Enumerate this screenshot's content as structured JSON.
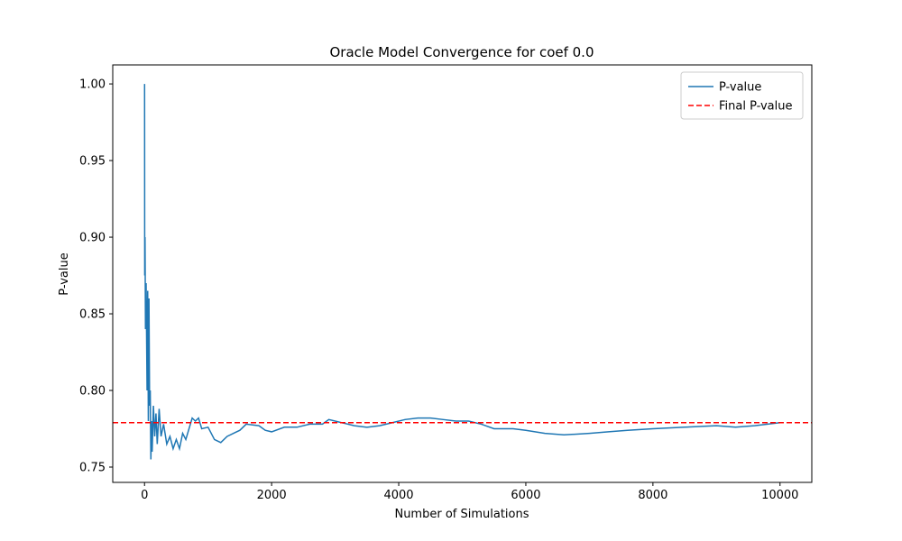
{
  "chart_data": {
    "type": "line",
    "title": "Oracle Model Convergence for coef 0.0",
    "xlabel": "Number of Simulations",
    "ylabel": "P-value",
    "x": [
      1,
      3,
      8,
      15,
      25,
      40,
      50,
      60,
      70,
      80,
      90,
      100,
      110,
      120,
      140,
      160,
      180,
      200,
      230,
      260,
      300,
      350,
      400,
      450,
      500,
      550,
      600,
      650,
      700,
      750,
      800,
      850,
      900,
      1000,
      1100,
      1200,
      1300,
      1400,
      1500,
      1600,
      1800,
      1900,
      2000,
      2200,
      2400,
      2600,
      2800,
      2900,
      3100,
      3300,
      3500,
      3700,
      3900,
      4100,
      4300,
      4500,
      4700,
      4900,
      5100,
      5300,
      5500,
      5800,
      6000,
      6300,
      6600,
      7000,
      7300,
      7600,
      8000,
      8500,
      9000,
      9300,
      9600,
      10000
    ],
    "series": [
      {
        "name": "P-value",
        "color": "#1f77b4",
        "values": [
          1.0,
          0.875,
          0.9,
          0.84,
          0.87,
          0.8,
          0.865,
          0.78,
          0.86,
          0.79,
          0.8,
          0.755,
          0.78,
          0.76,
          0.79,
          0.77,
          0.785,
          0.765,
          0.788,
          0.77,
          0.778,
          0.765,
          0.77,
          0.762,
          0.768,
          0.762,
          0.772,
          0.768,
          0.775,
          0.782,
          0.78,
          0.782,
          0.775,
          0.776,
          0.768,
          0.766,
          0.77,
          0.772,
          0.774,
          0.778,
          0.777,
          0.774,
          0.773,
          0.776,
          0.776,
          0.778,
          0.778,
          0.781,
          0.779,
          0.777,
          0.776,
          0.777,
          0.779,
          0.781,
          0.782,
          0.782,
          0.781,
          0.78,
          0.78,
          0.778,
          0.775,
          0.775,
          0.774,
          0.772,
          0.771,
          0.772,
          0.773,
          0.774,
          0.775,
          0.776,
          0.777,
          0.776,
          0.777,
          0.779
        ]
      }
    ],
    "hline": {
      "name": "Final P-value",
      "value": 0.779,
      "color": "#ff0000"
    },
    "xlim": [
      -500,
      10500
    ],
    "xticks": [
      0,
      2000,
      4000,
      6000,
      8000,
      10000
    ],
    "ylim": [
      0.74,
      1.0124
    ],
    "yticks": [
      0.75,
      {
        "value": 0.8,
        "label": "0.80"
      },
      0.85,
      {
        "value": 0.9,
        "label": "0.90"
      },
      0.95,
      {
        "value": 1.0,
        "label": "1.00"
      }
    ],
    "legend": "upper right"
  }
}
